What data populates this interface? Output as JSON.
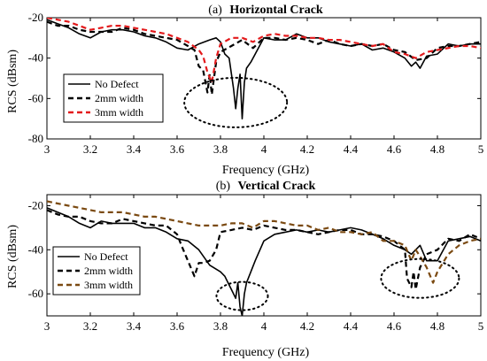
{
  "chart_data": [
    {
      "type": "line",
      "panel_label": "(a)",
      "title": "Horizontal Crack",
      "xlabel": "Frequency (GHz)",
      "ylabel": "RCS (dBsm)",
      "xlim": [
        3,
        5
      ],
      "ylim": [
        -80,
        -20
      ],
      "xticks": [
        "3",
        "3.2",
        "3.4",
        "3.6",
        "3.8",
        "4",
        "4.2",
        "4.4",
        "4.6",
        "4.8",
        "5"
      ],
      "yticks": [
        "-20",
        "-40",
        "-60",
        "-80"
      ],
      "grid": false,
      "legend_position": "lower-left",
      "annotations": [
        "dotted ellipse around resonance near 3.85 GHz"
      ],
      "series": [
        {
          "name": "No Defect",
          "color": "#000000",
          "style": "solid",
          "x": [
            3.0,
            3.05,
            3.1,
            3.15,
            3.2,
            3.25,
            3.3,
            3.35,
            3.4,
            3.45,
            3.5,
            3.55,
            3.6,
            3.65,
            3.7,
            3.75,
            3.78,
            3.8,
            3.82,
            3.84,
            3.86,
            3.87,
            3.88,
            3.89,
            3.9,
            3.91,
            3.92,
            3.94,
            3.96,
            4.0,
            4.05,
            4.1,
            4.15,
            4.2,
            4.25,
            4.3,
            4.35,
            4.4,
            4.45,
            4.5,
            4.55,
            4.6,
            4.65,
            4.68,
            4.7,
            4.72,
            4.75,
            4.8,
            4.85,
            4.9,
            4.95,
            5.0
          ],
          "y": [
            -21,
            -23,
            -25,
            -28,
            -30,
            -27,
            -26,
            -26,
            -27,
            -29,
            -30,
            -32,
            -35,
            -36,
            -33,
            -31,
            -30,
            -32,
            -38,
            -40,
            -55,
            -65,
            -55,
            -48,
            -70,
            -52,
            -45,
            -42,
            -38,
            -30,
            -31,
            -31,
            -28,
            -30,
            -30,
            -32,
            -33,
            -34,
            -33,
            -36,
            -35,
            -37,
            -40,
            -44,
            -42,
            -45,
            -39,
            -38,
            -33,
            -34,
            -33,
            -33
          ]
        },
        {
          "name": "2mm width",
          "color": "#000000",
          "style": "dashed",
          "x": [
            3.0,
            3.05,
            3.1,
            3.15,
            3.2,
            3.25,
            3.3,
            3.35,
            3.4,
            3.45,
            3.5,
            3.55,
            3.6,
            3.65,
            3.68,
            3.7,
            3.72,
            3.74,
            3.75,
            3.76,
            3.78,
            3.8,
            3.85,
            3.9,
            3.95,
            4.0,
            4.05,
            4.1,
            4.15,
            4.2,
            4.25,
            4.3,
            4.35,
            4.4,
            4.45,
            4.5,
            4.55,
            4.6,
            4.65,
            4.7,
            4.75,
            4.8,
            4.85,
            4.9,
            4.95,
            5.0
          ],
          "y": [
            -22,
            -24,
            -24,
            -26,
            -27,
            -27,
            -27,
            -25,
            -26,
            -28,
            -29,
            -30,
            -31,
            -34,
            -36,
            -44,
            -46,
            -57,
            -48,
            -58,
            -42,
            -37,
            -34,
            -31,
            -35,
            -30,
            -30,
            -31,
            -30,
            -31,
            -33,
            -31,
            -33,
            -34,
            -33,
            -34,
            -33,
            -36,
            -37,
            -41,
            -40,
            -35,
            -34,
            -34,
            -33,
            -32
          ]
        },
        {
          "name": "3mm width",
          "color": "#e31a1c",
          "style": "dashed",
          "x": [
            3.0,
            3.05,
            3.1,
            3.15,
            3.2,
            3.25,
            3.3,
            3.35,
            3.4,
            3.45,
            3.5,
            3.55,
            3.6,
            3.65,
            3.7,
            3.72,
            3.74,
            3.76,
            3.78,
            3.8,
            3.85,
            3.9,
            3.95,
            4.0,
            4.05,
            4.1,
            4.15,
            4.2,
            4.25,
            4.3,
            4.35,
            4.4,
            4.45,
            4.5,
            4.55,
            4.6,
            4.65,
            4.7,
            4.75,
            4.8,
            4.85,
            4.9,
            4.95,
            5.0
          ],
          "y": [
            -20,
            -21,
            -22,
            -24,
            -26,
            -25,
            -24,
            -24,
            -25,
            -26,
            -27,
            -28,
            -30,
            -32,
            -36,
            -39,
            -47,
            -52,
            -40,
            -33,
            -30,
            -30,
            -32,
            -29,
            -28,
            -29,
            -29,
            -30,
            -30,
            -31,
            -31,
            -32,
            -33,
            -34,
            -33,
            -37,
            -38,
            -40,
            -37,
            -36,
            -35,
            -34,
            -34,
            -35
          ]
        }
      ]
    },
    {
      "type": "line",
      "panel_label": "(b)",
      "title": "Vertical Crack",
      "xlabel": "Frequency (GHz)",
      "ylabel": "RCS (dBsm)",
      "xlim": [
        3,
        5
      ],
      "ylim": [
        -70,
        -15
      ],
      "xticks": [
        "3",
        "3.2",
        "3.4",
        "3.6",
        "3.8",
        "4",
        "4.2",
        "4.4",
        "4.6",
        "4.8",
        "5"
      ],
      "yticks": [
        "-20",
        "-40",
        "-60"
      ],
      "grid": false,
      "legend_position": "lower-left",
      "annotations": [
        "dotted ellipse around resonance near 3.9 GHz",
        "dotted ellipse around resonance near 4.7 GHz"
      ],
      "series": [
        {
          "name": "No Defect",
          "color": "#000000",
          "style": "solid",
          "x": [
            3.0,
            3.05,
            3.1,
            3.15,
            3.2,
            3.25,
            3.3,
            3.35,
            3.4,
            3.45,
            3.5,
            3.55,
            3.6,
            3.65,
            3.7,
            3.75,
            3.8,
            3.82,
            3.85,
            3.87,
            3.88,
            3.89,
            3.9,
            3.91,
            3.92,
            3.94,
            3.96,
            4.0,
            4.05,
            4.1,
            4.15,
            4.2,
            4.25,
            4.3,
            4.35,
            4.4,
            4.45,
            4.5,
            4.55,
            4.6,
            4.65,
            4.68,
            4.7,
            4.72,
            4.75,
            4.8,
            4.85,
            4.9,
            4.95,
            5.0
          ],
          "y": [
            -21,
            -23,
            -25,
            -28,
            -30,
            -27,
            -28,
            -28,
            -28,
            -30,
            -30,
            -32,
            -35,
            -36,
            -40,
            -47,
            -50,
            -52,
            -58,
            -62,
            -55,
            -66,
            -70,
            -60,
            -55,
            -50,
            -45,
            -36,
            -33,
            -32,
            -31,
            -32,
            -31,
            -32,
            -31,
            -30,
            -31,
            -33,
            -35,
            -38,
            -40,
            -42,
            -40,
            -38,
            -45,
            -45,
            -36,
            -35,
            -34,
            -36
          ]
        },
        {
          "name": "2mm width",
          "color": "#000000",
          "style": "dashed",
          "x": [
            3.0,
            3.05,
            3.1,
            3.15,
            3.2,
            3.25,
            3.3,
            3.35,
            3.4,
            3.45,
            3.5,
            3.55,
            3.6,
            3.62,
            3.65,
            3.68,
            3.7,
            3.72,
            3.75,
            3.78,
            3.8,
            3.85,
            3.9,
            3.95,
            4.0,
            4.05,
            4.1,
            4.15,
            4.2,
            4.25,
            4.3,
            4.35,
            4.4,
            4.45,
            4.5,
            4.55,
            4.6,
            4.65,
            4.66,
            4.68,
            4.69,
            4.7,
            4.72,
            4.75,
            4.8,
            4.85,
            4.9,
            4.95,
            5.0
          ],
          "y": [
            -22,
            -24,
            -25,
            -25,
            -27,
            -28,
            -28,
            -26,
            -27,
            -28,
            -29,
            -29,
            -33,
            -38,
            -45,
            -52,
            -46,
            -46,
            -45,
            -40,
            -32,
            -31,
            -30,
            -31,
            -29,
            -30,
            -31,
            -31,
            -32,
            -33,
            -32,
            -31,
            -31,
            -33,
            -33,
            -34,
            -36,
            -40,
            -53,
            -57,
            -50,
            -58,
            -48,
            -42,
            -40,
            -35,
            -36,
            -33,
            -35
          ]
        },
        {
          "name": "3mm width",
          "color": "#7b4a12",
          "style": "dashed",
          "x": [
            3.0,
            3.05,
            3.1,
            3.15,
            3.2,
            3.25,
            3.3,
            3.35,
            3.4,
            3.45,
            3.5,
            3.55,
            3.6,
            3.65,
            3.7,
            3.75,
            3.8,
            3.85,
            3.9,
            3.95,
            4.0,
            4.05,
            4.1,
            4.15,
            4.2,
            4.25,
            4.3,
            4.35,
            4.4,
            4.45,
            4.5,
            4.55,
            4.6,
            4.65,
            4.68,
            4.7,
            4.72,
            4.75,
            4.78,
            4.8,
            4.85,
            4.9,
            4.95,
            5.0
          ],
          "y": [
            -18,
            -19,
            -20,
            -21,
            -22,
            -23,
            -23,
            -23,
            -24,
            -25,
            -25,
            -26,
            -27,
            -28,
            -29,
            -29,
            -29,
            -28,
            -28,
            -30,
            -27,
            -27,
            -28,
            -29,
            -29,
            -31,
            -30,
            -32,
            -32,
            -33,
            -32,
            -36,
            -36,
            -38,
            -45,
            -40,
            -43,
            -48,
            -55,
            -50,
            -42,
            -38,
            -36,
            -35
          ]
        }
      ]
    }
  ]
}
